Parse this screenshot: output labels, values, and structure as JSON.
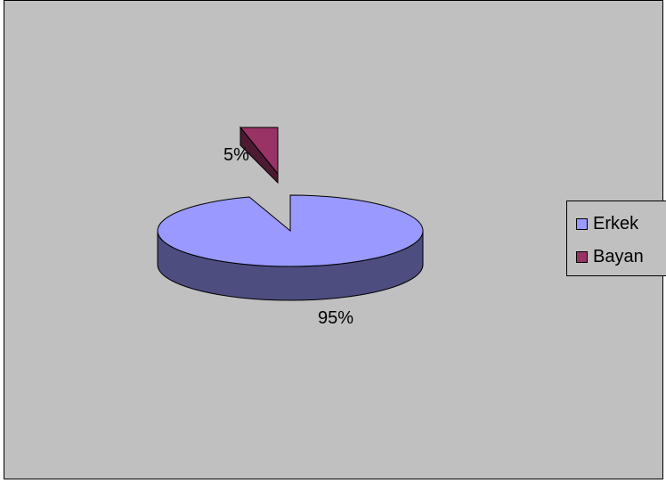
{
  "chart_data": {
    "type": "pie",
    "title": "",
    "categories": [
      "Erkek",
      "Bayan"
    ],
    "values": [
      95,
      5
    ],
    "data_labels": [
      "95%",
      "5%"
    ],
    "exploded": "Bayan",
    "three_d": true,
    "legend_placement": "right",
    "colors": {
      "Erkek_top": "#9999ff",
      "Erkek_side": "#4d4d80",
      "Bayan_top": "#993366",
      "Bayan_side": "#4d1a33",
      "background": "#c0c0c0",
      "outline": "#000000"
    }
  },
  "legend": {
    "items": [
      {
        "label": "Erkek",
        "color": "#9999ff"
      },
      {
        "label": "Bayan",
        "color": "#993366"
      }
    ]
  }
}
